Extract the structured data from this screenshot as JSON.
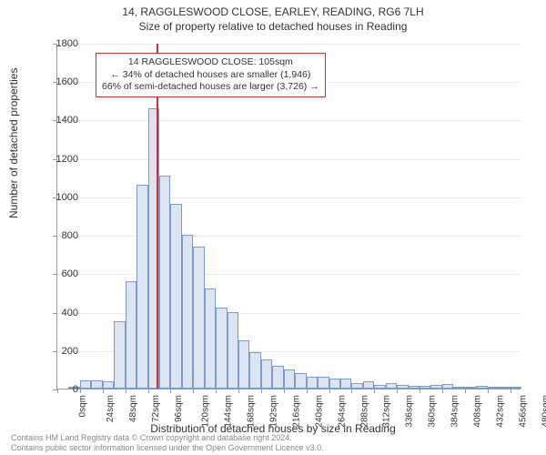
{
  "title_line1": "14, RAGGLESWOOD CLOSE, EARLEY, READING, RG6 7LH",
  "title_line2": "Size of property relative to detached houses in Reading",
  "y_axis_label": "Number of detached properties",
  "x_axis_label": "Distribution of detached houses by size in Reading",
  "chart": {
    "type": "histogram",
    "ylim": [
      0,
      1800
    ],
    "ytick_step": 200,
    "y_ticks": [
      0,
      200,
      400,
      600,
      800,
      1000,
      1200,
      1400,
      1600,
      1800
    ],
    "xlim": [
      0,
      492
    ],
    "x_ticks": [
      0,
      24,
      48,
      72,
      96,
      120,
      144,
      168,
      192,
      216,
      240,
      264,
      288,
      312,
      336,
      360,
      384,
      408,
      432,
      456,
      480
    ],
    "x_tick_unit": "sqm",
    "bin_width": 12,
    "bar_fill": "#dce4f2",
    "bar_border": "#7a9cc6",
    "grid_color": "#eaeaea",
    "axis_color": "#999999",
    "background_color": "#ffffff",
    "values": [
      0,
      5,
      45,
      45,
      40,
      350,
      560,
      1060,
      1460,
      1110,
      960,
      800,
      740,
      520,
      420,
      400,
      250,
      190,
      150,
      120,
      100,
      80,
      60,
      60,
      50,
      50,
      30,
      40,
      20,
      30,
      20,
      15,
      15,
      20,
      25,
      10,
      5,
      15,
      10,
      5,
      5
    ],
    "marker": {
      "x_value": 105,
      "color": "#d73030",
      "width": 2
    }
  },
  "annotation": {
    "border_color": "#d73030",
    "line1": "14 RAGGLESWOOD CLOSE: 105sqm",
    "line2": "← 34% of detached houses are smaller (1,946)",
    "line3": "66% of semi-detached houses are larger (3,726) →"
  },
  "footer_line1": "Contains HM Land Registry data © Crown copyright and database right 2024.",
  "footer_line2": "Contains public sector information licensed under the Open Government Licence v3.0."
}
